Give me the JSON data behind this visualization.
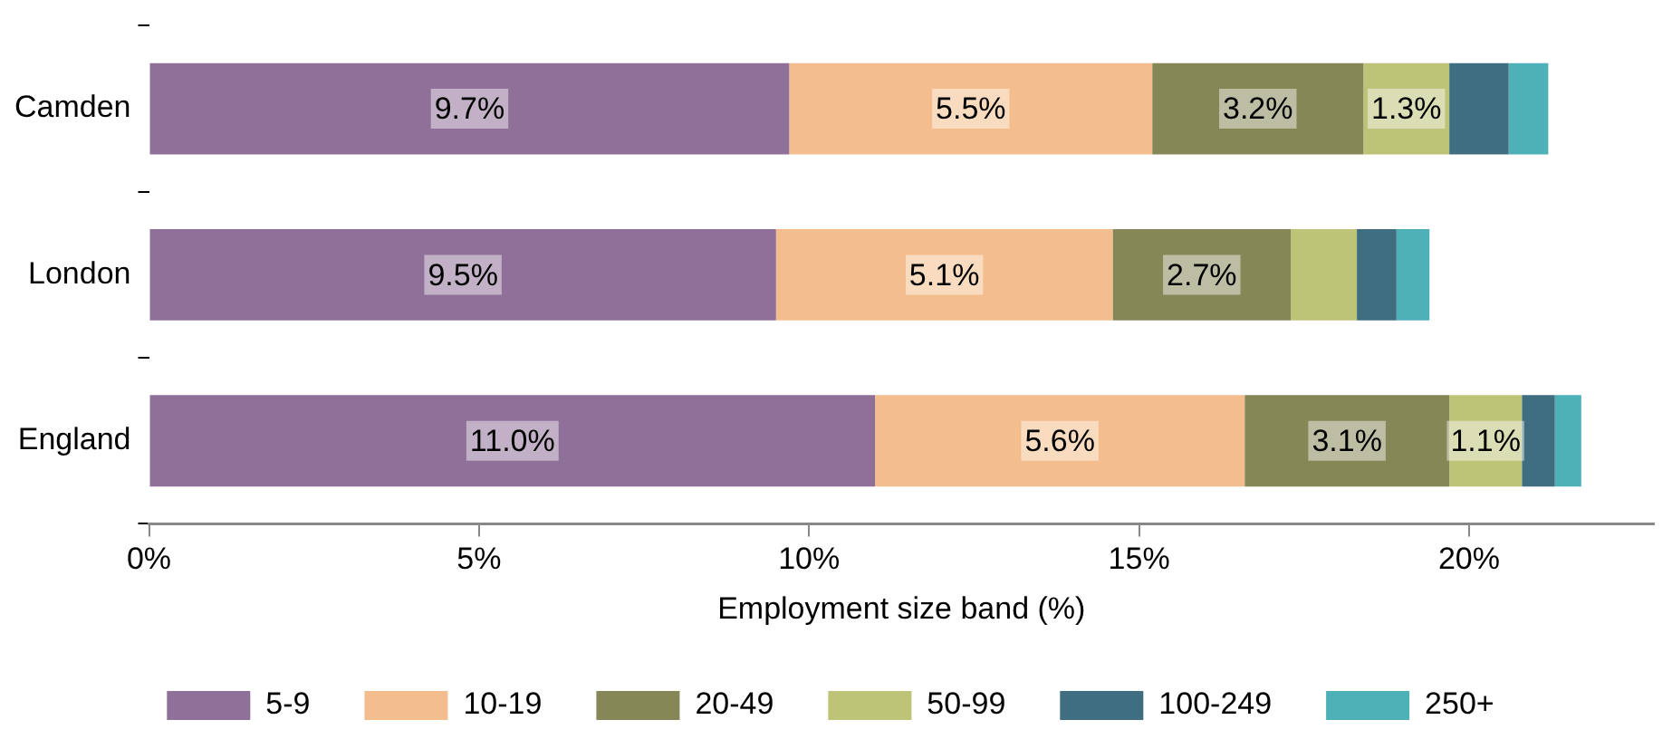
{
  "chart_data": {
    "type": "bar",
    "orientation": "horizontal",
    "stacked": true,
    "xlabel": "Employment size band (%)",
    "categories": [
      "Camden",
      "London",
      "England"
    ],
    "series": [
      {
        "name": "5-9",
        "color": "#8f7098",
        "values": [
          9.7,
          9.5,
          11.0
        ],
        "value_labels": [
          "9.7%",
          "9.5%",
          "11.0%"
        ]
      },
      {
        "name": "10-19",
        "color": "#f4bd8d",
        "values": [
          5.5,
          5.1,
          5.6
        ],
        "value_labels": [
          "5.5%",
          "5.1%",
          "5.6%"
        ]
      },
      {
        "name": "20-49",
        "color": "#858756",
        "values": [
          3.2,
          2.7,
          3.1
        ],
        "value_labels": [
          "3.2%",
          "2.7%",
          "3.1%"
        ]
      },
      {
        "name": "50-99",
        "color": "#bec477",
        "values": [
          1.3,
          1.0,
          1.1
        ],
        "value_labels": [
          "1.3%",
          null,
          "1.1%"
        ]
      },
      {
        "name": "100-249",
        "color": "#3e6e80",
        "values": [
          0.9,
          0.6,
          0.5
        ]
      },
      {
        "name": "250+",
        "color": "#4fb1b8",
        "values": [
          0.6,
          0.5,
          0.4
        ]
      }
    ],
    "xlim": [
      0,
      22.8
    ],
    "xticks": [
      {
        "value": 0,
        "label": "0%"
      },
      {
        "value": 5,
        "label": "5%"
      },
      {
        "value": 10,
        "label": "10%"
      },
      {
        "value": 15,
        "label": "15%"
      },
      {
        "value": 20,
        "label": "20%"
      }
    ],
    "legend": "bottom",
    "grid": false
  }
}
